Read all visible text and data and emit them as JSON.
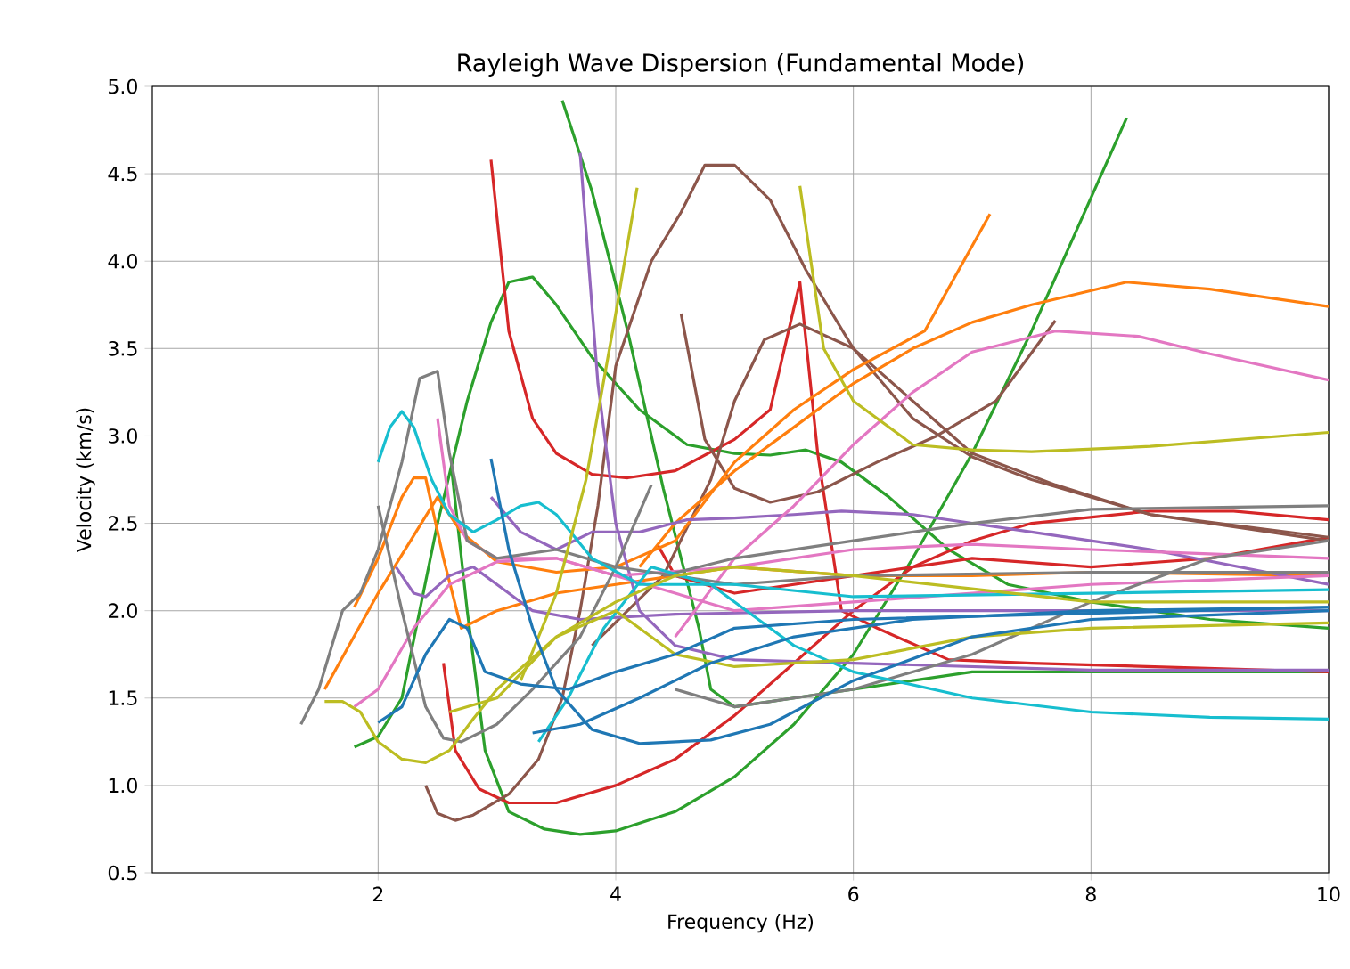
{
  "chart_data": {
    "type": "line",
    "title": "Rayleigh Wave Dispersion (Fundamental Mode)",
    "xlabel": "Frequency (Hz)",
    "ylabel": "Velocity (km/s)",
    "xlim": [
      0.1,
      10
    ],
    "ylim": [
      0.5,
      5.0
    ],
    "xticks": [
      2,
      4,
      6,
      8,
      10
    ],
    "yticks": [
      0.5,
      {
        "value": 1.0,
        "label": "1.0"
      },
      1.5,
      {
        "value": 2.0,
        "label": "2.0"
      },
      2.5,
      {
        "value": 3.0,
        "label": "3.0"
      },
      3.5,
      {
        "value": 4.0,
        "label": "4.0"
      },
      4.5,
      {
        "value": 5.0,
        "label": "5.0"
      }
    ],
    "grid": true,
    "series": [
      {
        "color": "#2ca02c",
        "x": [
          1.8,
          2.0,
          2.2,
          2.5,
          2.75,
          2.95,
          3.1,
          3.3,
          3.5,
          3.8,
          4.2,
          4.6,
          5.0,
          5.3,
          5.6,
          5.9,
          6.3,
          6.8,
          7.3,
          8.0,
          9.0,
          10.0
        ],
        "values": [
          1.22,
          1.28,
          1.5,
          2.5,
          3.2,
          3.65,
          3.88,
          3.91,
          3.75,
          3.45,
          3.15,
          2.95,
          2.9,
          2.89,
          2.92,
          2.85,
          2.65,
          2.35,
          2.15,
          2.05,
          1.95,
          1.9
        ]
      },
      {
        "color": "#2ca02c",
        "x": [
          2.62,
          2.75,
          2.9,
          3.1,
          3.4,
          3.7,
          4.0,
          4.5,
          5.0,
          5.5,
          6.0,
          6.5,
          7.0,
          7.5,
          8.3
        ],
        "values": [
          2.8,
          2.0,
          1.2,
          0.85,
          0.75,
          0.72,
          0.74,
          0.85,
          1.05,
          1.35,
          1.75,
          2.3,
          2.9,
          3.6,
          4.82
        ]
      },
      {
        "color": "#2ca02c",
        "x": [
          3.55,
          3.8,
          4.1,
          4.4,
          4.7,
          4.8,
          5.0,
          5.5,
          6.0,
          7.0,
          8.0,
          10.0
        ],
        "values": [
          4.92,
          4.4,
          3.6,
          2.7,
          1.9,
          1.55,
          1.45,
          1.5,
          1.55,
          1.65,
          1.65,
          1.65
        ]
      },
      {
        "color": "#d62728",
        "x": [
          2.95,
          3.1,
          3.3,
          3.5,
          3.8,
          4.1,
          4.5,
          5.0,
          5.3,
          5.55,
          5.7,
          5.9,
          6.2,
          6.8,
          7.5,
          10.0
        ],
        "values": [
          4.58,
          3.6,
          3.1,
          2.9,
          2.78,
          2.76,
          2.8,
          2.98,
          3.15,
          3.88,
          2.9,
          2.0,
          1.9,
          1.72,
          1.7,
          1.65
        ]
      },
      {
        "color": "#d62728",
        "x": [
          2.55,
          2.65,
          2.85,
          3.1,
          3.5,
          4.0,
          4.5,
          5.0,
          5.5,
          6.0,
          6.5,
          7.0,
          7.5,
          8.5,
          9.2,
          10.0
        ],
        "values": [
          1.7,
          1.2,
          0.98,
          0.9,
          0.9,
          1.0,
          1.15,
          1.4,
          1.7,
          2.0,
          2.25,
          2.4,
          2.5,
          2.57,
          2.57,
          2.52
        ]
      },
      {
        "color": "#d62728",
        "x": [
          4.35,
          4.5,
          5.0,
          6.0,
          7.0,
          8.0,
          9.0,
          10.0
        ],
        "values": [
          2.38,
          2.2,
          2.1,
          2.2,
          2.3,
          2.25,
          2.3,
          2.42
        ]
      },
      {
        "color": "#8c564b",
        "x": [
          2.4,
          2.5,
          2.65,
          2.8,
          3.1,
          3.35,
          3.55,
          3.7,
          3.85,
          4.0,
          4.3,
          4.55,
          4.75,
          5.0,
          5.3,
          5.6,
          6.0,
          6.5,
          7.0,
          7.5,
          8.5,
          10.0
        ],
        "values": [
          1.0,
          0.84,
          0.8,
          0.83,
          0.95,
          1.15,
          1.5,
          2.0,
          2.6,
          3.4,
          4.0,
          4.28,
          4.55,
          4.55,
          4.35,
          3.95,
          3.5,
          3.1,
          2.88,
          2.75,
          2.55,
          2.4
        ]
      },
      {
        "color": "#8c564b",
        "x": [
          4.55,
          4.75,
          5.0,
          5.3,
          5.7,
          6.2,
          6.7,
          7.2,
          7.7
        ],
        "values": [
          3.7,
          2.98,
          2.7,
          2.62,
          2.68,
          2.85,
          3.0,
          3.2,
          3.66
        ]
      },
      {
        "color": "#8c564b",
        "x": [
          3.8,
          4.4,
          4.8,
          5.0,
          5.25,
          5.55,
          6.0,
          6.5,
          7.0,
          7.7,
          8.5,
          10.0
        ],
        "values": [
          1.8,
          2.2,
          2.75,
          3.2,
          3.55,
          3.64,
          3.5,
          3.2,
          2.9,
          2.72,
          2.55,
          2.42
        ]
      },
      {
        "color": "#ff7f0e",
        "x": [
          1.55,
          2.0,
          2.5,
          2.7,
          3.0,
          3.5,
          4.0,
          4.5,
          5.0,
          5.5,
          6.0,
          6.6,
          7.15
        ],
        "values": [
          1.55,
          2.1,
          2.65,
          2.45,
          2.28,
          2.22,
          2.25,
          2.4,
          2.85,
          3.15,
          3.38,
          3.6,
          4.27
        ]
      },
      {
        "color": "#ff7f0e",
        "x": [
          1.8,
          2.0,
          2.2,
          2.3,
          2.4,
          2.55,
          2.7,
          3.0,
          3.5,
          4.0,
          4.5,
          5.0,
          6.0,
          7.0,
          8.0,
          10.0
        ],
        "values": [
          2.02,
          2.3,
          2.65,
          2.76,
          2.76,
          2.3,
          1.9,
          2.0,
          2.1,
          2.15,
          2.2,
          2.25,
          2.2,
          2.2,
          2.22,
          2.2
        ]
      },
      {
        "color": "#ff7f0e",
        "x": [
          4.2,
          4.5,
          5.0,
          5.5,
          6.0,
          6.5,
          7.0,
          7.5,
          8.3,
          9.0,
          10.0
        ],
        "values": [
          2.25,
          2.5,
          2.8,
          3.05,
          3.3,
          3.5,
          3.65,
          3.75,
          3.88,
          3.84,
          3.74
        ]
      },
      {
        "color": "#9467bd",
        "x": [
          3.7,
          3.85,
          4.0,
          4.2,
          4.5,
          5.0,
          6.0,
          7.0,
          8.0,
          10.0
        ],
        "values": [
          4.62,
          3.3,
          2.5,
          2.0,
          1.8,
          1.72,
          1.7,
          1.68,
          1.66,
          1.66
        ]
      },
      {
        "color": "#9467bd",
        "x": [
          2.15,
          2.3,
          2.4,
          2.6,
          2.8,
          3.0,
          3.3,
          3.7,
          4.5,
          6.0,
          8.0,
          10.0
        ],
        "values": [
          2.25,
          2.1,
          2.08,
          2.2,
          2.25,
          2.15,
          2.0,
          1.95,
          1.98,
          2.0,
          2.0,
          2.0
        ]
      },
      {
        "color": "#9467bd",
        "x": [
          2.95,
          3.2,
          3.5,
          3.8,
          4.2,
          4.6,
          5.0,
          5.5,
          5.9,
          6.5,
          7.5,
          8.5,
          10.0
        ],
        "values": [
          2.65,
          2.45,
          2.35,
          2.45,
          2.45,
          2.52,
          2.53,
          2.55,
          2.57,
          2.55,
          2.45,
          2.35,
          2.15
        ]
      },
      {
        "color": "#e377c2",
        "x": [
          2.5,
          2.6,
          2.75,
          3.0,
          3.5,
          4.0,
          4.5,
          5.0,
          6.0,
          8.0,
          10.0
        ],
        "values": [
          3.1,
          2.6,
          2.4,
          2.3,
          2.3,
          2.2,
          2.1,
          2.0,
          2.05,
          2.15,
          2.2
        ]
      },
      {
        "color": "#e377c2",
        "x": [
          4.5,
          5.0,
          5.5,
          6.0,
          6.5,
          7.0,
          7.7,
          8.4,
          9.0,
          10.0
        ],
        "values": [
          1.85,
          2.3,
          2.6,
          2.95,
          3.25,
          3.48,
          3.6,
          3.57,
          3.47,
          3.32
        ]
      },
      {
        "color": "#e377c2",
        "x": [
          1.8,
          2.0,
          2.3,
          2.6,
          3.0,
          3.5,
          4.0,
          5.0,
          6.0,
          7.0,
          8.0,
          10.0
        ],
        "values": [
          1.45,
          1.55,
          1.9,
          2.15,
          2.28,
          2.3,
          2.2,
          2.25,
          2.35,
          2.38,
          2.35,
          2.3
        ]
      },
      {
        "color": "#7f7f7f",
        "x": [
          1.35,
          1.5,
          1.7,
          1.85,
          2.0,
          2.2,
          2.35,
          2.5,
          2.6,
          2.75,
          3.0,
          3.5,
          4.0,
          5.0,
          6.0,
          8.0,
          10.0
        ],
        "values": [
          1.35,
          1.55,
          2.0,
          2.1,
          2.35,
          2.85,
          3.33,
          3.37,
          2.9,
          2.4,
          2.3,
          2.35,
          2.25,
          2.15,
          2.2,
          2.22,
          2.22
        ]
      },
      {
        "color": "#7f7f7f",
        "x": [
          2.0,
          2.2,
          2.4,
          2.55,
          2.7,
          3.0,
          3.3,
          3.7,
          4.0,
          4.3
        ],
        "values": [
          2.6,
          2.0,
          1.45,
          1.27,
          1.25,
          1.35,
          1.55,
          1.85,
          2.25,
          2.72
        ]
      },
      {
        "color": "#7f7f7f",
        "x": [
          4.4,
          5.0,
          6.0,
          7.0,
          8.0,
          10.0
        ],
        "values": [
          2.2,
          2.3,
          2.4,
          2.5,
          2.58,
          2.6
        ]
      },
      {
        "color": "#7f7f7f",
        "x": [
          4.5,
          5.0,
          6.0,
          7.0,
          8.0,
          9.0,
          10.0
        ],
        "values": [
          1.55,
          1.45,
          1.55,
          1.75,
          2.05,
          2.3,
          2.4
        ]
      },
      {
        "color": "#17becf",
        "x": [
          2.0,
          2.1,
          2.2,
          2.3,
          2.45,
          2.6,
          2.8,
          3.0,
          3.2,
          3.35,
          3.5,
          3.8,
          4.2,
          5.0,
          6.0,
          8.0,
          10.0
        ],
        "values": [
          2.85,
          3.05,
          3.14,
          3.05,
          2.75,
          2.55,
          2.45,
          2.52,
          2.6,
          2.62,
          2.55,
          2.3,
          2.15,
          2.15,
          2.08,
          2.1,
          2.12
        ]
      },
      {
        "color": "#17becf",
        "x": [
          3.35,
          3.6,
          3.9,
          4.3,
          4.8,
          5.2,
          5.5,
          6.0,
          7.0,
          8.0,
          9.0,
          10.0
        ],
        "values": [
          1.25,
          1.5,
          1.9,
          2.25,
          2.15,
          1.95,
          1.8,
          1.65,
          1.5,
          1.42,
          1.39,
          1.38
        ]
      },
      {
        "color": "#bcbd22",
        "x": [
          1.55,
          1.7,
          1.85,
          2.0,
          2.2,
          2.4,
          2.6,
          2.8,
          3.0,
          3.5,
          4.0,
          4.5,
          5.0,
          6.0,
          8.0,
          10.0
        ],
        "values": [
          1.48,
          1.48,
          1.42,
          1.25,
          1.15,
          1.13,
          1.2,
          1.38,
          1.55,
          1.85,
          2.05,
          2.2,
          2.25,
          2.2,
          2.05,
          2.05
        ]
      },
      {
        "color": "#bcbd22",
        "x": [
          3.2,
          3.5,
          3.75,
          4.0,
          4.18
        ],
        "values": [
          1.6,
          2.1,
          2.75,
          3.7,
          4.42
        ]
      },
      {
        "color": "#bcbd22",
        "x": [
          5.55,
          5.75,
          6.0,
          6.5,
          7.0,
          7.5,
          8.5,
          10.0
        ],
        "values": [
          4.43,
          3.5,
          3.2,
          2.95,
          2.92,
          2.91,
          2.94,
          3.02
        ]
      },
      {
        "color": "#bcbd22",
        "x": [
          2.6,
          3.0,
          3.5,
          4.0,
          4.5,
          5.0,
          6.0,
          7.0,
          8.0,
          10.0
        ],
        "values": [
          1.42,
          1.5,
          1.85,
          2.0,
          1.75,
          1.68,
          1.72,
          1.85,
          1.9,
          1.93
        ]
      },
      {
        "color": "#1f77b4",
        "x": [
          2.95,
          3.1,
          3.3,
          3.5,
          3.8,
          4.2,
          4.8,
          5.3,
          6.0,
          7.0,
          8.0,
          10.0
        ],
        "values": [
          2.87,
          2.35,
          1.9,
          1.55,
          1.32,
          1.24,
          1.26,
          1.35,
          1.6,
          1.85,
          1.95,
          2.0
        ]
      },
      {
        "color": "#1f77b4",
        "x": [
          2.0,
          2.2,
          2.4,
          2.6,
          2.75,
          2.9,
          3.2,
          3.6,
          4.0,
          4.5,
          5.0,
          6.0,
          10.0
        ],
        "values": [
          1.36,
          1.45,
          1.75,
          1.95,
          1.9,
          1.65,
          1.58,
          1.55,
          1.65,
          1.75,
          1.9,
          1.95,
          2.02
        ]
      },
      {
        "color": "#1f77b4",
        "x": [
          3.3,
          3.7,
          4.2,
          4.8,
          5.5,
          6.5,
          8.0,
          10.0
        ],
        "values": [
          1.3,
          1.35,
          1.5,
          1.7,
          1.85,
          1.95,
          2.0,
          2.02
        ]
      }
    ]
  }
}
